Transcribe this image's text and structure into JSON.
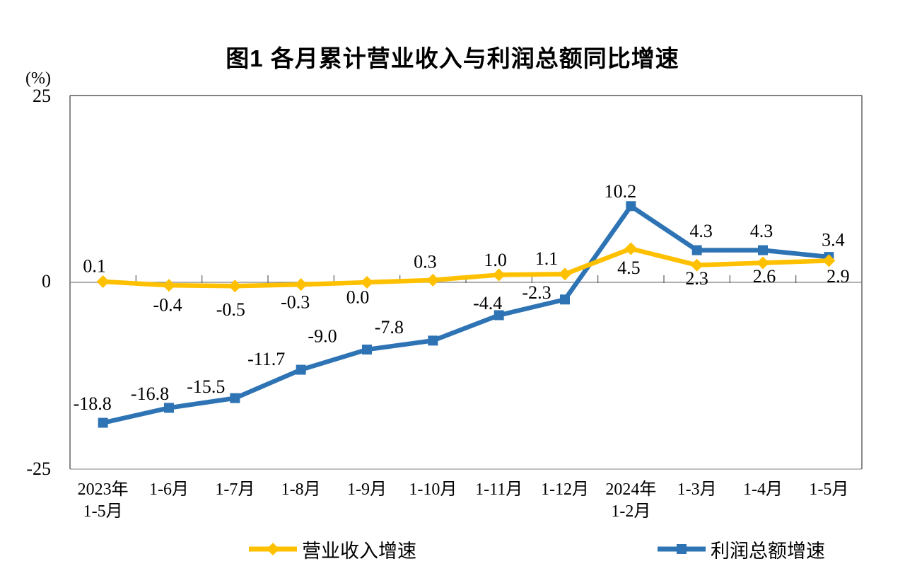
{
  "figure": {
    "title": "图1 各月累计营业收入与利润总额同比增速"
  },
  "y_axis": {
    "unit": "(%)",
    "ticks": [
      "25",
      "0",
      "-25"
    ]
  },
  "x_axis": {
    "categories": [
      [
        "2023年",
        "1-5月"
      ],
      [
        "1-6月"
      ],
      [
        "1-7月"
      ],
      [
        "1-8月"
      ],
      [
        "1-9月"
      ],
      [
        "1-10月"
      ],
      [
        "1-11月"
      ],
      [
        "1-12月"
      ],
      [
        "2024年",
        "1-2月"
      ],
      [
        "1-3月"
      ],
      [
        "1-4月"
      ],
      [
        "1-5月"
      ]
    ]
  },
  "legend": {
    "items": [
      {
        "label": "营业收入增速",
        "color": "#FFC000",
        "marker": "diamond"
      },
      {
        "label": "利润总额增速",
        "color": "#2E74B5",
        "marker": "square"
      }
    ]
  },
  "colors": {
    "revenue_series": "#FFC000",
    "profit_series": "#2E74B5",
    "axis_dark": "#595959",
    "axis_light": "#bfbfbf",
    "zero_line": "#808080"
  },
  "chart_data": {
    "type": "line",
    "title": "图1 各月累计营业收入与利润总额同比增速",
    "ylabel": "(%)",
    "ylim": [
      -25,
      25
    ],
    "y_ticks": [
      25,
      0,
      -25
    ],
    "grid": false,
    "legend_position": "bottom",
    "categories": [
      "2023年1-5月",
      "1-6月",
      "1-7月",
      "1-8月",
      "1-9月",
      "1-10月",
      "1-11月",
      "1-12月",
      "2024年1-2月",
      "1-3月",
      "1-4月",
      "1-5月"
    ],
    "series": [
      {
        "name": "营业收入增速",
        "color": "#FFC000",
        "marker": "diamond",
        "values": [
          0.1,
          -0.4,
          -0.5,
          -0.3,
          0.0,
          0.3,
          1.0,
          1.1,
          4.5,
          2.3,
          2.6,
          2.9
        ],
        "label_offsets": [
          [
            -12,
            -22
          ],
          [
            -2,
            28
          ],
          [
            -6,
            33
          ],
          [
            -8,
            25
          ],
          [
            -13,
            21
          ],
          [
            -11,
            -26
          ],
          [
            -5,
            -21
          ],
          [
            -26,
            -22
          ],
          [
            -3,
            27
          ],
          [
            0,
            19
          ],
          [
            2,
            19
          ],
          [
            13,
            22
          ]
        ]
      },
      {
        "name": "利润总额增速",
        "color": "#2E74B5",
        "marker": "square",
        "values": [
          -18.8,
          -16.8,
          -15.5,
          -11.7,
          -9.0,
          -7.8,
          -4.4,
          -2.3,
          10.2,
          4.3,
          4.3,
          3.4
        ],
        "label_offsets": [
          [
            -15,
            -27
          ],
          [
            -27,
            -20
          ],
          [
            -41,
            -16
          ],
          [
            -49,
            -15
          ],
          [
            -63,
            -19
          ],
          [
            -62,
            -19
          ],
          [
            -16,
            -17
          ],
          [
            -40,
            -10
          ],
          [
            -15,
            -21
          ],
          [
            6,
            -27
          ],
          [
            -2,
            -27
          ],
          [
            6,
            -24
          ]
        ]
      }
    ]
  }
}
